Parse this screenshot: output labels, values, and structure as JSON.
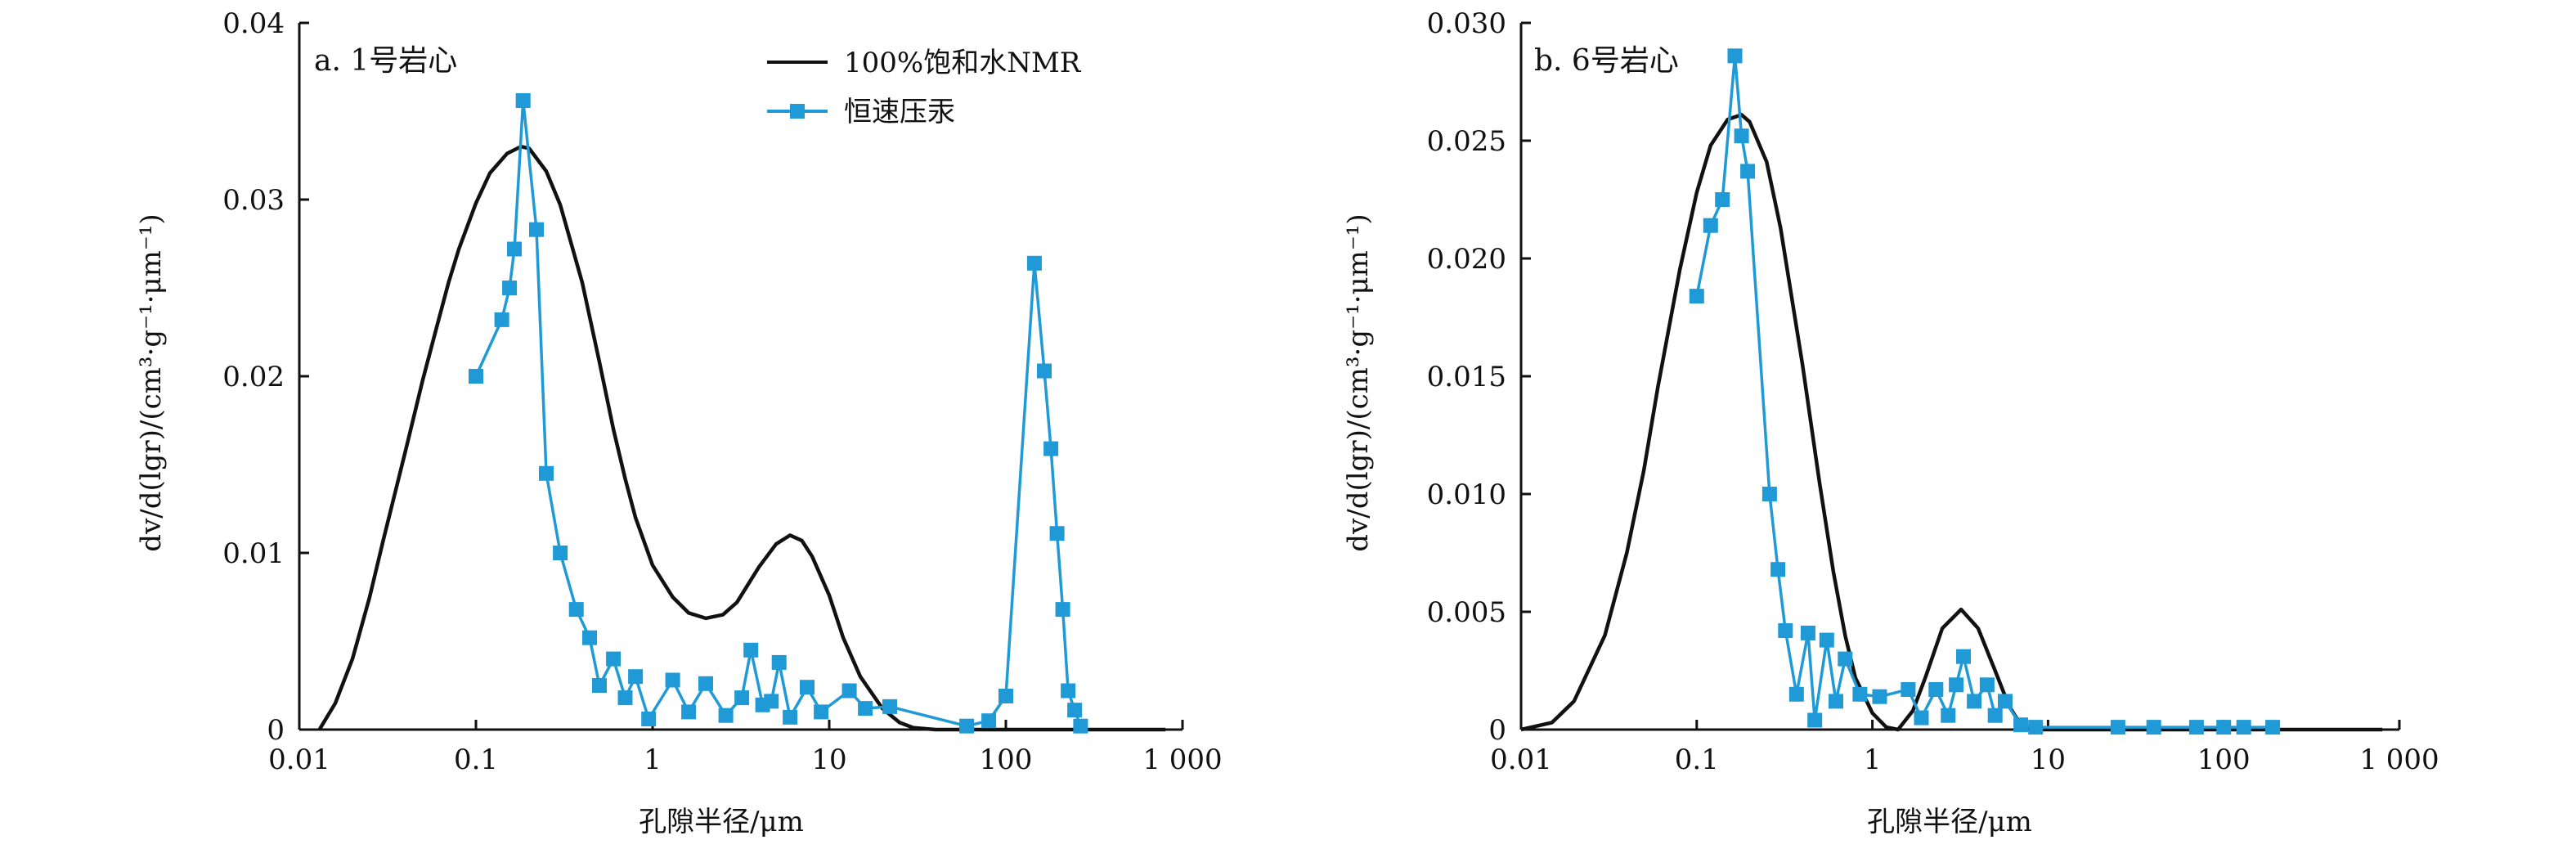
{
  "figure": {
    "legend": {
      "nmr_label": "100%饱和水NMR",
      "mercury_label": "恒速压汞"
    }
  },
  "chart_data": [
    {
      "type": "line",
      "panel_label": "a. 1号岩心",
      "xlabel": "孔隙半径/μm",
      "ylabel": "dv/d(lgr)/(cm³·g⁻¹·μm⁻¹)",
      "xscale": "log",
      "xlim": [
        0.01,
        1000
      ],
      "ylim": [
        0,
        0.04
      ],
      "xticks": [
        {
          "value": 0.01,
          "label": "0.01"
        },
        {
          "value": 0.1,
          "label": "0.1"
        },
        {
          "value": 1,
          "label": "1"
        },
        {
          "value": 10,
          "label": "10"
        },
        {
          "value": 100,
          "label": "100"
        },
        {
          "value": 1000,
          "label": "1 000"
        }
      ],
      "yticks": [
        {
          "value": 0,
          "label": "0"
        },
        {
          "value": 0.01,
          "label": "0.01"
        },
        {
          "value": 0.02,
          "label": "0.02"
        },
        {
          "value": 0.03,
          "label": "0.03"
        },
        {
          "value": 0.04,
          "label": "0.04"
        }
      ],
      "legend_position": "top-center",
      "grid": false,
      "series": [
        {
          "name": "100%饱和水NMR",
          "color": "#111111",
          "marker": "none",
          "points": [
            [
              0.013,
              0
            ],
            [
              0.016,
              0.0015
            ],
            [
              0.02,
              0.004
            ],
            [
              0.025,
              0.0075
            ],
            [
              0.03,
              0.0108
            ],
            [
              0.04,
              0.0158
            ],
            [
              0.05,
              0.0198
            ],
            [
              0.06,
              0.0228
            ],
            [
              0.07,
              0.0253
            ],
            [
              0.08,
              0.0272
            ],
            [
              0.1,
              0.0298
            ],
            [
              0.12,
              0.0315
            ],
            [
              0.15,
              0.0326
            ],
            [
              0.18,
              0.033
            ],
            [
              0.2,
              0.0329
            ],
            [
              0.25,
              0.0316
            ],
            [
              0.3,
              0.0297
            ],
            [
              0.4,
              0.0253
            ],
            [
              0.5,
              0.0208
            ],
            [
              0.6,
              0.017
            ],
            [
              0.7,
              0.0142
            ],
            [
              0.8,
              0.012
            ],
            [
              1,
              0.0093
            ],
            [
              1.3,
              0.0075
            ],
            [
              1.6,
              0.0066
            ],
            [
              2,
              0.0063
            ],
            [
              2.5,
              0.0065
            ],
            [
              3,
              0.0072
            ],
            [
              4,
              0.0092
            ],
            [
              5,
              0.0105
            ],
            [
              6,
              0.011
            ],
            [
              7,
              0.0107
            ],
            [
              8,
              0.0098
            ],
            [
              10,
              0.0076
            ],
            [
              12,
              0.0052
            ],
            [
              15,
              0.003
            ],
            [
              20,
              0.0012
            ],
            [
              25,
              0.0004
            ],
            [
              30,
              0.0001
            ],
            [
              40,
              0
            ],
            [
              800,
              0
            ]
          ]
        },
        {
          "name": "恒速压汞",
          "color": "#1f9ad6",
          "marker": "square",
          "points": [
            [
              0.1,
              0.02
            ],
            [
              0.14,
              0.0232
            ],
            [
              0.155,
              0.025
            ],
            [
              0.165,
              0.0272
            ],
            [
              0.185,
              0.0356
            ],
            [
              0.22,
              0.0283
            ],
            [
              0.25,
              0.0145
            ],
            [
              0.3,
              0.01
            ],
            [
              0.37,
              0.0068
            ],
            [
              0.44,
              0.0052
            ],
            [
              0.5,
              0.0025
            ],
            [
              0.6,
              0.004
            ],
            [
              0.7,
              0.0018
            ],
            [
              0.8,
              0.003
            ],
            [
              0.95,
              0.0006
            ],
            [
              1.3,
              0.0028
            ],
            [
              1.6,
              0.001
            ],
            [
              2,
              0.0026
            ],
            [
              2.6,
              0.0008
            ],
            [
              3.2,
              0.0018
            ],
            [
              3.6,
              0.0045
            ],
            [
              4.2,
              0.0014
            ],
            [
              4.7,
              0.0016
            ],
            [
              5.2,
              0.0038
            ],
            [
              6,
              0.0007
            ],
            [
              7.5,
              0.0024
            ],
            [
              9,
              0.001
            ],
            [
              13,
              0.0022
            ],
            [
              16,
              0.0012
            ],
            [
              22,
              0.0013
            ],
            [
              60,
              0.0002
            ],
            [
              80,
              0.0005
            ],
            [
              100,
              0.0019
            ],
            [
              145,
              0.0264
            ],
            [
              165,
              0.0203
            ],
            [
              180,
              0.0159
            ],
            [
              195,
              0.0111
            ],
            [
              210,
              0.0068
            ],
            [
              225,
              0.0022
            ],
            [
              245,
              0.0011
            ],
            [
              265,
              0.0002
            ]
          ]
        }
      ]
    },
    {
      "type": "line",
      "panel_label": "b. 6号岩心",
      "xlabel": "孔隙半径/μm",
      "ylabel": "dv/d(lgr)/(cm³·g⁻¹·μm⁻¹)",
      "xscale": "log",
      "xlim": [
        0.01,
        1000
      ],
      "ylim": [
        0,
        0.03
      ],
      "xticks": [
        {
          "value": 0.01,
          "label": "0.01"
        },
        {
          "value": 0.1,
          "label": "0.1"
        },
        {
          "value": 1,
          "label": "1"
        },
        {
          "value": 10,
          "label": "10"
        },
        {
          "value": 100,
          "label": "100"
        },
        {
          "value": 1000,
          "label": "1 000"
        }
      ],
      "yticks": [
        {
          "value": 0,
          "label": "0"
        },
        {
          "value": 0.005,
          "label": "0.005"
        },
        {
          "value": 0.01,
          "label": "0.010"
        },
        {
          "value": 0.015,
          "label": "0.015"
        },
        {
          "value": 0.02,
          "label": "0.020"
        },
        {
          "value": 0.025,
          "label": "0.025"
        },
        {
          "value": 0.03,
          "label": "0.030"
        }
      ],
      "grid": false,
      "series": [
        {
          "name": "100%饱和水NMR",
          "color": "#111111",
          "marker": "none",
          "points": [
            [
              0.01,
              0
            ],
            [
              0.015,
              0.0003
            ],
            [
              0.02,
              0.0012
            ],
            [
              0.03,
              0.004
            ],
            [
              0.04,
              0.0075
            ],
            [
              0.05,
              0.011
            ],
            [
              0.06,
              0.0145
            ],
            [
              0.08,
              0.0195
            ],
            [
              0.1,
              0.0228
            ],
            [
              0.12,
              0.0248
            ],
            [
              0.15,
              0.0259
            ],
            [
              0.18,
              0.0261
            ],
            [
              0.2,
              0.0258
            ],
            [
              0.25,
              0.0241
            ],
            [
              0.3,
              0.0213
            ],
            [
              0.4,
              0.0155
            ],
            [
              0.5,
              0.0105
            ],
            [
              0.6,
              0.0067
            ],
            [
              0.7,
              0.004
            ],
            [
              0.8,
              0.0022
            ],
            [
              1,
              0.0007
            ],
            [
              1.2,
              0.0001
            ],
            [
              1.4,
              0
            ],
            [
              1.7,
              0.0008
            ],
            [
              2,
              0.0022
            ],
            [
              2.5,
              0.0043
            ],
            [
              3.2,
              0.0051
            ],
            [
              4,
              0.0043
            ],
            [
              5,
              0.0025
            ],
            [
              6,
              0.001
            ],
            [
              7,
              0.0002
            ],
            [
              8,
              0
            ],
            [
              800,
              0
            ]
          ]
        },
        {
          "name": "恒速压汞",
          "color": "#1f9ad6",
          "marker": "square",
          "points": [
            [
              0.1,
              0.0184
            ],
            [
              0.12,
              0.0214
            ],
            [
              0.14,
              0.0225
            ],
            [
              0.165,
              0.0286
            ],
            [
              0.18,
              0.0252
            ],
            [
              0.195,
              0.0237
            ],
            [
              0.26,
              0.01
            ],
            [
              0.29,
              0.0068
            ],
            [
              0.32,
              0.0042
            ],
            [
              0.37,
              0.0015
            ],
            [
              0.43,
              0.0041
            ],
            [
              0.47,
              0.0004
            ],
            [
              0.55,
              0.0038
            ],
            [
              0.62,
              0.0012
            ],
            [
              0.7,
              0.003
            ],
            [
              0.85,
              0.0015
            ],
            [
              1.1,
              0.0014
            ],
            [
              1.6,
              0.0017
            ],
            [
              1.9,
              0.0005
            ],
            [
              2.3,
              0.0017
            ],
            [
              2.7,
              0.0006
            ],
            [
              3,
              0.0019
            ],
            [
              3.3,
              0.0031
            ],
            [
              3.8,
              0.0012
            ],
            [
              4.5,
              0.0019
            ],
            [
              5,
              0.0006
            ],
            [
              5.7,
              0.0012
            ],
            [
              7,
              0.0002
            ],
            [
              8.5,
              0.0001
            ],
            [
              25,
              0.0001
            ],
            [
              40,
              0.0001
            ],
            [
              70,
              0.0001
            ],
            [
              100,
              0.0001
            ],
            [
              130,
              0.0001
            ],
            [
              190,
              0.0001
            ]
          ]
        }
      ]
    }
  ]
}
